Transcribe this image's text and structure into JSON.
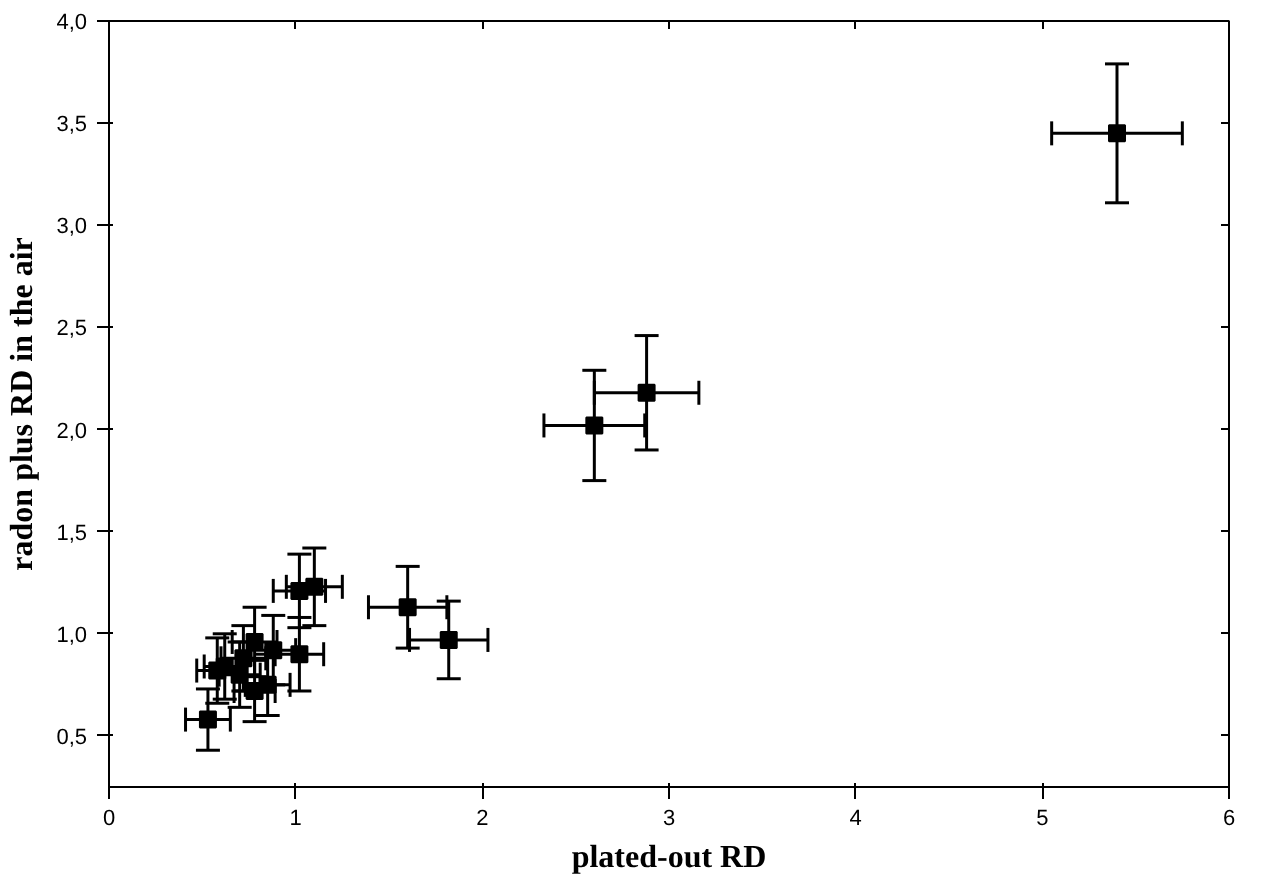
{
  "chart_data": {
    "type": "scatter",
    "xlabel": "plated-out RD",
    "ylabel": "radon plus RD in the air",
    "x": [
      5.4,
      2.88,
      2.6,
      1.6,
      1.82,
      1.1,
      1.02,
      1.02,
      0.88,
      0.78,
      0.72,
      0.62,
      0.58,
      0.78,
      0.85,
      0.7,
      0.53
    ],
    "series": [
      {
        "color": "#000000",
        "values": [
          3.45,
          2.18,
          2.02,
          1.13,
          0.97,
          1.23,
          1.21,
          0.9,
          0.92,
          0.96,
          0.88,
          0.84,
          0.82,
          0.72,
          0.75,
          0.8,
          0.58
        ],
        "errors": [
          0.34,
          0.28,
          0.27,
          0.2,
          0.19,
          0.19,
          0.18,
          0.18,
          0.17,
          0.17,
          0.16,
          0.16,
          0.16,
          0.15,
          0.15,
          0.16,
          0.15
        ],
        "xerrors": [
          0.35,
          0.28,
          0.27,
          0.21,
          0.21,
          0.15,
          0.14,
          0.13,
          0.12,
          0.12,
          0.12,
          0.11,
          0.11,
          0.11,
          0.12,
          0.11,
          0.12
        ]
      }
    ],
    "xlim": [
      0,
      6
    ],
    "ylim": [
      0.25,
      4.0
    ],
    "xticks": [
      0,
      1,
      2,
      3,
      4,
      5,
      6
    ],
    "yticks": [
      {
        "value": 0.5,
        "label": "0,5"
      },
      {
        "value": 1.0,
        "label": "1,0"
      },
      {
        "value": 1.5,
        "label": "1,5"
      },
      {
        "value": 2.0,
        "label": "2,0"
      },
      {
        "value": 2.5,
        "label": "2,5"
      },
      {
        "value": 3.0,
        "label": "3,0"
      },
      {
        "value": 3.5,
        "label": "3,5"
      },
      {
        "value": 4.0,
        "label": "4,0"
      }
    ],
    "marker": "square",
    "grid": false
  }
}
